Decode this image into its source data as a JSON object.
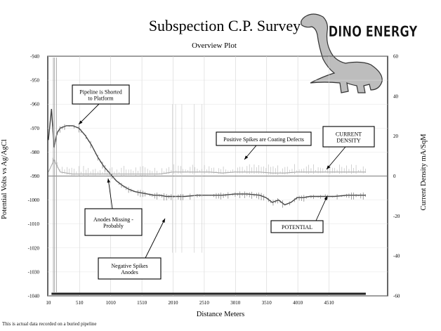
{
  "chart_data": {
    "type": "line",
    "title": "Subspection C.P. Survey",
    "subtitle": "Overview Plot",
    "xlabel": "Distance Meters",
    "ylabel_left": "Potential Volts vs Ag/AgCl",
    "ylabel_right": "Current Density mA/SqM",
    "xlim": [
      0,
      5450
    ],
    "ylim_left": [
      -1040,
      -940
    ],
    "ylim_right": [
      -60,
      60
    ],
    "x_ticks": [
      "10",
      "510",
      "1010",
      "1510",
      "2010",
      "2510",
      "3010",
      "3510",
      "4010",
      "4510"
    ],
    "x_tick_values": [
      10,
      510,
      1010,
      1510,
      2010,
      2510,
      3010,
      3510,
      4010,
      4510
    ],
    "y_ticks_left": [
      "-940",
      "-950",
      "-960",
      "-970",
      "-980",
      "-990",
      "-1000",
      "-1010",
      "-1020",
      "-1030",
      "-1040"
    ],
    "y_tick_values_left": [
      -940,
      -950,
      -960,
      -970,
      -980,
      -990,
      -1000,
      -1010,
      -1020,
      -1030,
      -1040
    ],
    "y_ticks_right": [
      "60",
      "40",
      "20",
      "0",
      "-20",
      "-40",
      "-60"
    ],
    "y_tick_values_right": [
      60,
      40,
      20,
      0,
      -20,
      -40,
      -60
    ],
    "grid": true,
    "series": [
      {
        "name": "POTENTIAL",
        "axis": "left",
        "color": "#444444",
        "x": [
          10,
          60,
          100,
          150,
          200,
          300,
          400,
          500,
          600,
          700,
          800,
          900,
          1000,
          1100,
          1200,
          1300,
          1400,
          1500,
          1600,
          1700,
          1800,
          1900,
          2000,
          2200,
          2400,
          2600,
          2800,
          3000,
          3200,
          3400,
          3500,
          3600,
          3700,
          3800,
          3900,
          4000,
          4100,
          4200,
          4400,
          4600,
          4800,
          5000,
          5100
        ],
        "y": [
          -975,
          -962,
          -978,
          -972,
          -970,
          -969,
          -969,
          -970,
          -973,
          -977,
          -982,
          -986,
          -989,
          -992,
          -994,
          -995.5,
          -996.5,
          -997,
          -997.5,
          -998,
          -998,
          -998.5,
          -998.5,
          -998.5,
          -998,
          -998,
          -998,
          -997.5,
          -997.5,
          -998,
          -999,
          -1001,
          -1000,
          -1002,
          -1001,
          -999,
          -999,
          -998.5,
          -998.5,
          -998.5,
          -998,
          -998,
          -998
        ]
      },
      {
        "name": "CURRENT DENSITY",
        "axis": "right",
        "color": "#a8a8a8",
        "x": [
          10,
          100,
          200,
          400,
          600,
          800,
          1000,
          1200,
          1400,
          1600,
          1800,
          2000,
          2200,
          2400,
          2600,
          2800,
          3000,
          3200,
          3400,
          3600,
          3800,
          4000,
          4200,
          4400,
          4600,
          4800,
          5000,
          5100
        ],
        "y": [
          2,
          8,
          2,
          1,
          1,
          1,
          1,
          1,
          1,
          1,
          1,
          2,
          2,
          2,
          2,
          1.5,
          2,
          2,
          2,
          1.5,
          1.5,
          2,
          2,
          2,
          2,
          2,
          2,
          2
        ]
      }
    ],
    "annotations": [
      {
        "text": "Pipeline is Shorted to Platform",
        "x": 400,
        "y": -970,
        "axis": "left"
      },
      {
        "text": "Positive Spikes are Coating Defects",
        "x": 3000,
        "y": -982,
        "axis": "left"
      },
      {
        "text": "CURRENT DENSITY",
        "x": 4450,
        "y": -987.5,
        "axis": "left"
      },
      {
        "text": "Anodes Missing - Probably",
        "x": 800,
        "y": -991,
        "axis": "left"
      },
      {
        "text": "Negative Spikes Anodes",
        "x": 1800,
        "y": -1005,
        "axis": "left"
      },
      {
        "text": "POTENTIAL",
        "x": 4450,
        "y": -999,
        "axis": "left"
      }
    ]
  },
  "logo": {
    "text": "DINO ENERGY"
  },
  "footnote": "This is actual data recorded on a buried pipeline"
}
